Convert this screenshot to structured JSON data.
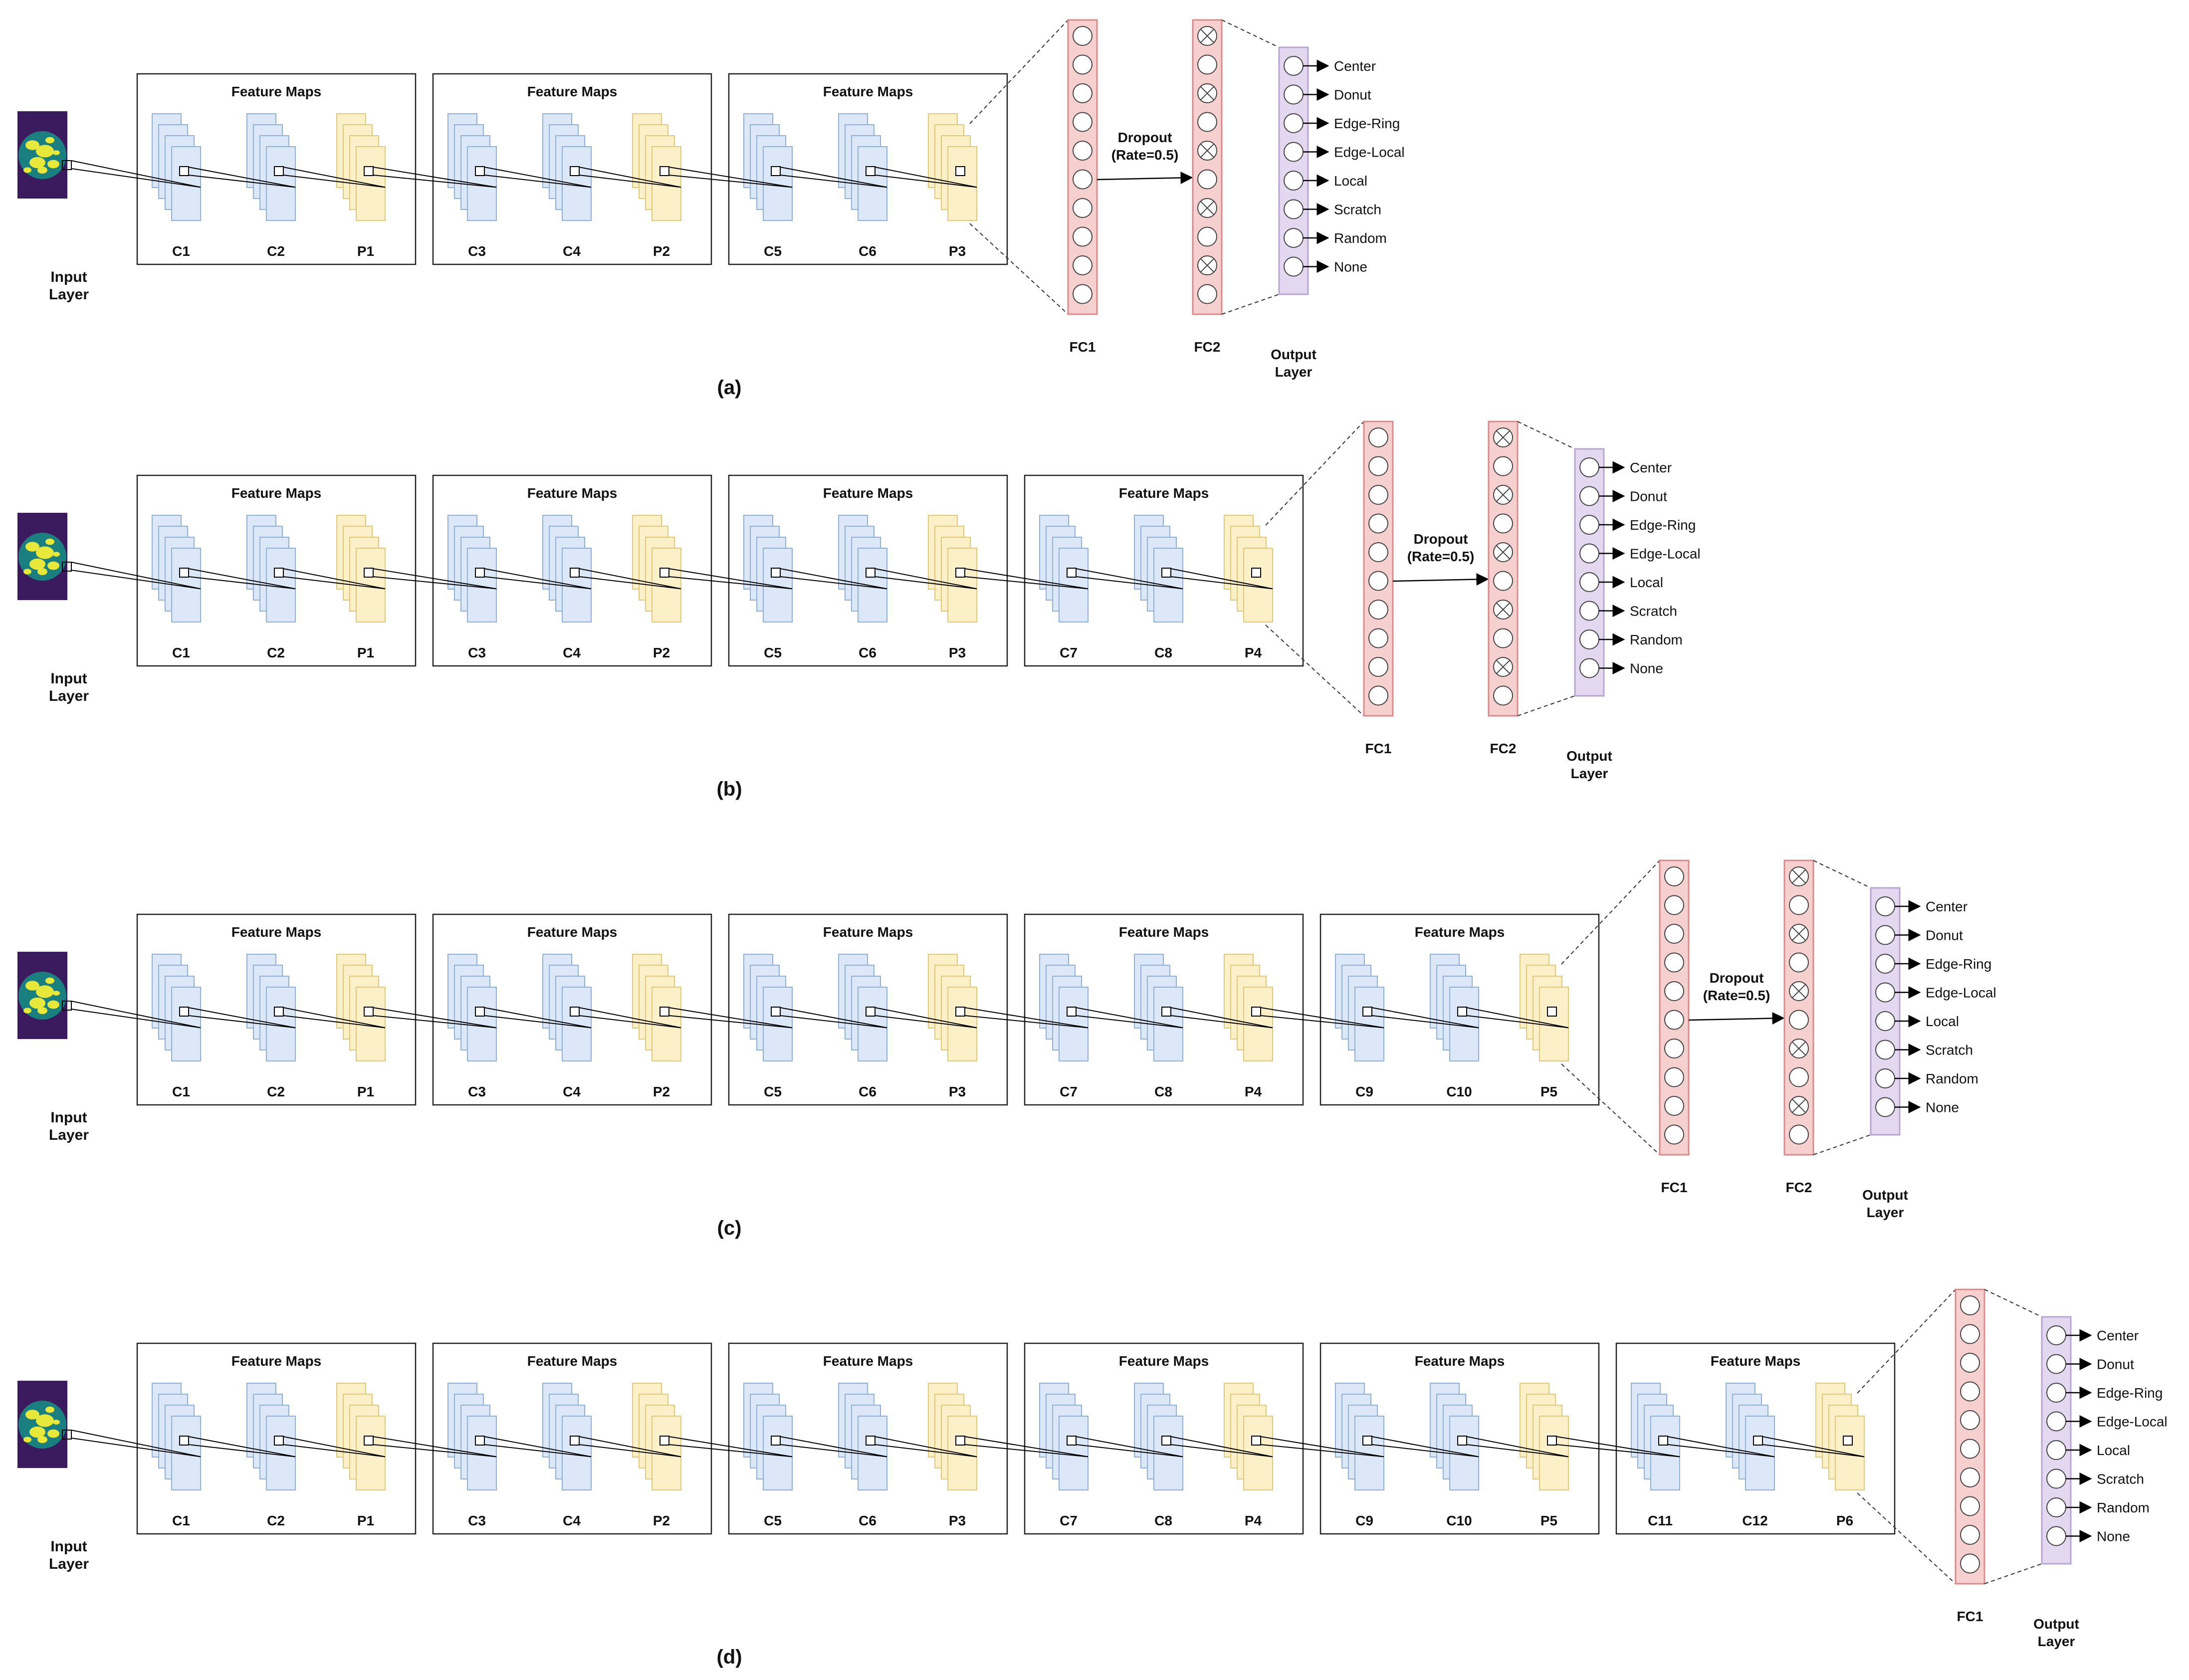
{
  "colors": {
    "conv_fill": "#dce8f8",
    "conv_stroke": "#8fb0d8",
    "pool_fill": "#fcf0c8",
    "pool_stroke": "#e2c97a",
    "fc_fill": "#f6cfcf",
    "fc_stroke": "#d98a8a",
    "out_fill": "#e3d8ef",
    "out_stroke": "#b8a5d4",
    "wafer_bg": "#3b1a5e",
    "wafer_body": "#1a7f7f",
    "wafer_defect": "#e8e83a"
  },
  "labels": {
    "feature_maps": "Feature Maps",
    "input_layer": [
      "Input",
      "Layer"
    ],
    "output_layer": [
      "Output",
      "Layer"
    ],
    "dropout": [
      "Dropout",
      "(Rate=0.5)"
    ],
    "fc1": "FC1",
    "fc2": "FC2"
  },
  "classes": [
    "Center",
    "Donut",
    "Edge-Ring",
    "Edge-Local",
    "Local",
    "Scratch",
    "Random",
    "None"
  ],
  "panels": [
    {
      "caption": "(a)",
      "blocks": [
        [
          "C1",
          "C2",
          "P1"
        ],
        [
          "C3",
          "C4",
          "P2"
        ],
        [
          "C5",
          "C6",
          "P3"
        ]
      ],
      "has_fc2": true
    },
    {
      "caption": "(b)",
      "blocks": [
        [
          "C1",
          "C2",
          "P1"
        ],
        [
          "C3",
          "C4",
          "P2"
        ],
        [
          "C5",
          "C6",
          "P3"
        ],
        [
          "C7",
          "C8",
          "P4"
        ]
      ],
      "has_fc2": true
    },
    {
      "caption": "(c)",
      "blocks": [
        [
          "C1",
          "C2",
          "P1"
        ],
        [
          "C3",
          "C4",
          "P2"
        ],
        [
          "C5",
          "C6",
          "P3"
        ],
        [
          "C7",
          "C8",
          "P4"
        ],
        [
          "C9",
          "C10",
          "P5"
        ]
      ],
      "has_fc2": true
    },
    {
      "caption": "(d)",
      "blocks": [
        [
          "C1",
          "C2",
          "P1"
        ],
        [
          "C3",
          "C4",
          "P2"
        ],
        [
          "C5",
          "C6",
          "P3"
        ],
        [
          "C7",
          "C8",
          "P4"
        ],
        [
          "C9",
          "C10",
          "P5"
        ],
        [
          "C11",
          "C12",
          "P6"
        ]
      ],
      "has_fc2": false
    }
  ]
}
